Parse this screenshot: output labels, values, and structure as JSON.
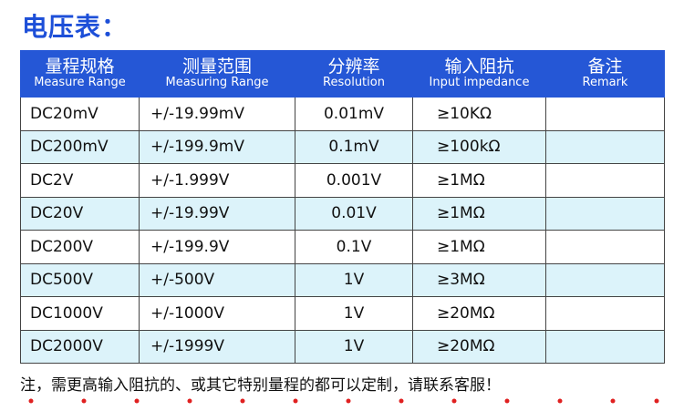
{
  "header": {
    "title": "电压表："
  },
  "table": {
    "columns": [
      {
        "zh": "量程规格",
        "en": "Measure Range"
      },
      {
        "zh": "测量范围",
        "en": "Measuring Range"
      },
      {
        "zh": "分辨率",
        "en": "Resolution"
      },
      {
        "zh": "输入阻抗",
        "en": "Input impedance"
      },
      {
        "zh": "备注",
        "en": "Remark"
      }
    ],
    "rows": [
      [
        "DC20mV",
        "+/-19.99mV",
        "0.01mV",
        "≥10KΩ"
      ],
      [
        "DC200mV",
        "+/-199.9mV",
        "0.1mV",
        "≥100kΩ"
      ],
      [
        "DC2V",
        "+/-1.999V",
        "0.001V",
        "≥1MΩ"
      ],
      [
        "DC20V",
        "+/-19.99V",
        "0.01V",
        "≥1MΩ"
      ],
      [
        "DC200V",
        "+/-199.9V",
        "0.1V",
        "≥1MΩ"
      ],
      [
        "DC500V",
        "+/-500V",
        "1V",
        "≥3MΩ"
      ],
      [
        "DC1000V",
        "+/-1000V",
        "1V",
        "≥20MΩ"
      ],
      [
        "DC2000V",
        "+/-1999V",
        "1V",
        "≥20MΩ"
      ]
    ]
  },
  "footer": {
    "note": "注，需更高输入阻抗的、或其它特别量程的都可以定制，请联系客服！"
  }
}
